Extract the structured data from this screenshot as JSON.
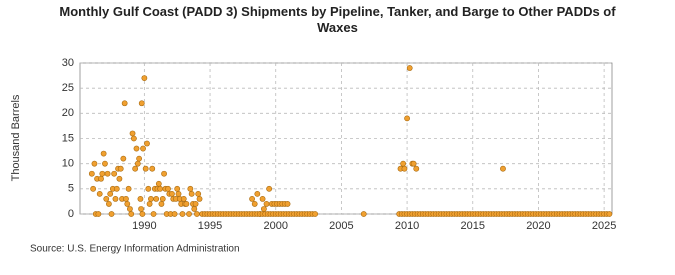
{
  "chart_data": {
    "type": "scatter",
    "title": "Monthly Gulf Coast (PADD 3) Shipments by Pipeline, Tanker, and Barge to Other PADDs of Waxes",
    "y_label": "Thousand Barrels",
    "source": "Source: U.S. Energy Information Administration",
    "color": "#f0a030",
    "grid": true,
    "xlim": [
      1985.1,
      2025.6
    ],
    "xticks": [
      1990,
      1995,
      2000,
      2005,
      2010,
      2015,
      2020,
      2025
    ],
    "ylim": [
      0,
      30
    ],
    "yticks": [
      0,
      5,
      10,
      15,
      20,
      25,
      30
    ],
    "x": [
      1986.0,
      1986.1,
      1986.2,
      1986.3,
      1986.4,
      1986.5,
      1986.6,
      1986.7,
      1986.8,
      1986.9,
      1987.0,
      1987.1,
      1987.2,
      1987.3,
      1987.4,
      1987.5,
      1987.6,
      1987.7,
      1987.8,
      1987.9,
      1988.0,
      1988.1,
      1988.2,
      1988.3,
      1988.4,
      1988.5,
      1988.6,
      1988.7,
      1988.8,
      1988.9,
      1989.0,
      1989.1,
      1989.2,
      1989.3,
      1989.4,
      1989.5,
      1989.6,
      1989.7,
      1989.75,
      1989.8,
      1989.85,
      1989.9,
      1990.0,
      1990.1,
      1990.2,
      1990.3,
      1990.4,
      1990.5,
      1990.6,
      1990.7,
      1990.8,
      1990.9,
      1991.0,
      1991.1,
      1991.2,
      1991.3,
      1991.4,
      1991.5,
      1991.6,
      1991.7,
      1991.8,
      1991.9,
      1992.0,
      1992.1,
      1992.2,
      1992.3,
      1992.4,
      1992.5,
      1992.6,
      1992.7,
      1992.8,
      1992.9,
      1993.0,
      1993.1,
      1993.2,
      1993.4,
      1993.5,
      1993.6,
      1993.7,
      1993.8,
      1993.9,
      1994.0,
      1994.1,
      1994.2,
      1998.2,
      1998.4,
      1998.6,
      1998.8,
      1999.0,
      1999.1,
      1999.3,
      1999.5,
      1999.7,
      1999.9,
      2000.1,
      2000.3,
      2000.5,
      2000.7,
      2000.9,
      2006.7,
      2009.5,
      2009.7,
      2009.8,
      2010.0,
      2010.2,
      2010.4,
      2010.5,
      2010.7,
      2017.3,
      1994.4,
      1994.6,
      1994.8,
      1995.0,
      1995.2,
      1995.4,
      1995.6,
      1995.8,
      1996.0,
      1996.2,
      1996.4,
      1996.6,
      1996.8,
      1997.0,
      1997.2,
      1997.4,
      1997.6,
      1997.8,
      1998.0,
      1998.2,
      1998.4,
      1998.6,
      1998.8,
      1999.0,
      1999.2,
      1999.4,
      1999.6,
      1999.8,
      2000.0,
      2000.2,
      2000.4,
      2000.6,
      2000.8,
      2001.0,
      2001.2,
      2001.4,
      2001.6,
      2001.8,
      2002.0,
      2002.2,
      2002.4,
      2002.6,
      2002.8,
      2003.0,
      2009.4,
      2009.6,
      2009.8,
      2010.0,
      2010.2,
      2010.4,
      2010.6,
      2010.8,
      2011.0,
      2011.2,
      2011.4,
      2011.6,
      2011.8,
      2012.0,
      2012.2,
      2012.4,
      2012.6,
      2012.8,
      2013.0,
      2013.2,
      2013.4,
      2013.6,
      2013.8,
      2014.0,
      2014.2,
      2014.4,
      2014.6,
      2014.8,
      2015.0,
      2015.2,
      2015.4,
      2015.6,
      2015.8,
      2016.0,
      2016.2,
      2016.4,
      2016.6,
      2016.8,
      2017.0,
      2017.2,
      2017.4,
      2017.6,
      2017.8,
      2018.0,
      2018.2,
      2018.4,
      2018.6,
      2018.8,
      2019.0,
      2019.2,
      2019.4,
      2019.6,
      2019.8,
      2020.0,
      2020.2,
      2020.4,
      2020.6,
      2020.8,
      2021.0,
      2021.2,
      2021.4,
      2021.6,
      2021.8,
      2022.0,
      2022.2,
      2022.4,
      2022.6,
      2022.8,
      2023.0,
      2023.2,
      2023.4,
      2023.6,
      2023.8,
      2024.0,
      2024.2,
      2024.4,
      2024.6,
      2024.8,
      2025.0,
      2025.2,
      2025.4
    ],
    "values": [
      8,
      5,
      10,
      0,
      7,
      0,
      4,
      7,
      8,
      12,
      10,
      3,
      8,
      2,
      4,
      0,
      5,
      8,
      3,
      5,
      9,
      7,
      9,
      3,
      11,
      22,
      3,
      2,
      5,
      1,
      0,
      16,
      15,
      9,
      13,
      10,
      11,
      3,
      1,
      22,
      0,
      13,
      27,
      9,
      14,
      5,
      2,
      3,
      9,
      0,
      5,
      3,
      5,
      6,
      5,
      2,
      3,
      8,
      5,
      0,
      5,
      4,
      0,
      4,
      3,
      0,
      3,
      5,
      4,
      3,
      2,
      0,
      3,
      2,
      2,
      0,
      5,
      4,
      2,
      1,
      2,
      0,
      4,
      3,
      3,
      2,
      4,
      0,
      3,
      1,
      2,
      5,
      2,
      2,
      2,
      2,
      2,
      2,
      2,
      0,
      9,
      10,
      9,
      19,
      29,
      10,
      10,
      9,
      9,
      0,
      0,
      0,
      0,
      0,
      0,
      0,
      0,
      0,
      0,
      0,
      0,
      0,
      0,
      0,
      0,
      0,
      0,
      0,
      0,
      0,
      0,
      0,
      0,
      0,
      0,
      0,
      0,
      0,
      0,
      0,
      0,
      0,
      0,
      0,
      0,
      0,
      0,
      0,
      0,
      0,
      0,
      0,
      0,
      0,
      0,
      0,
      0,
      0,
      0,
      0,
      0,
      0,
      0,
      0,
      0,
      0,
      0,
      0,
      0,
      0,
      0,
      0,
      0,
      0,
      0,
      0,
      0,
      0,
      0,
      0,
      0,
      0,
      0,
      0,
      0,
      0,
      0,
      0,
      0,
      0,
      0,
      0,
      0,
      0,
      0,
      0,
      0,
      0,
      0,
      0,
      0,
      0,
      0,
      0,
      0,
      0,
      0,
      0,
      0,
      0,
      0,
      0,
      0,
      0,
      0,
      0,
      0,
      0,
      0,
      0,
      0,
      0,
      0,
      0,
      0,
      0,
      0,
      0,
      0,
      0,
      0,
      0,
      0,
      0
    ]
  }
}
